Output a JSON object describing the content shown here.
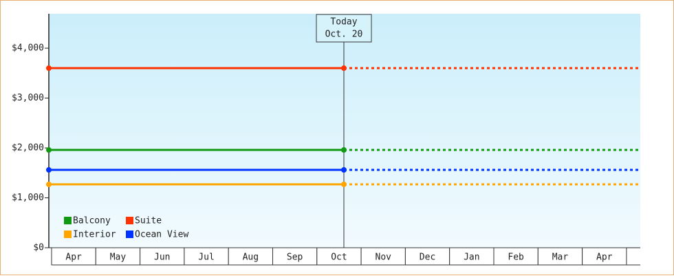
{
  "chart_data": {
    "type": "line",
    "categories": [
      "Apr",
      "May",
      "Jun",
      "Jul",
      "Aug",
      "Sep",
      "Oct",
      "Nov",
      "Dec",
      "Jan",
      "Feb",
      "Mar",
      "Apr"
    ],
    "series": [
      {
        "name": "Balcony",
        "color": "#119911",
        "value": 1960
      },
      {
        "name": "Suite",
        "color": "#ff3300",
        "value": 3600
      },
      {
        "name": "Interior",
        "color": "#ffa500",
        "value": 1270
      },
      {
        "name": "Ocean View",
        "color": "#0033ff",
        "value": 1560
      }
    ],
    "ylim": [
      0,
      4690
    ],
    "yticks": [
      {
        "value": 0,
        "label": "$0"
      },
      {
        "value": 1000,
        "label": "$1,000"
      },
      {
        "value": 2000,
        "label": "$2,000"
      },
      {
        "value": 3000,
        "label": "$3,000"
      },
      {
        "value": 4000,
        "label": "$4,000"
      }
    ],
    "annotation": {
      "title": "Today",
      "date": "Oct. 20"
    }
  }
}
